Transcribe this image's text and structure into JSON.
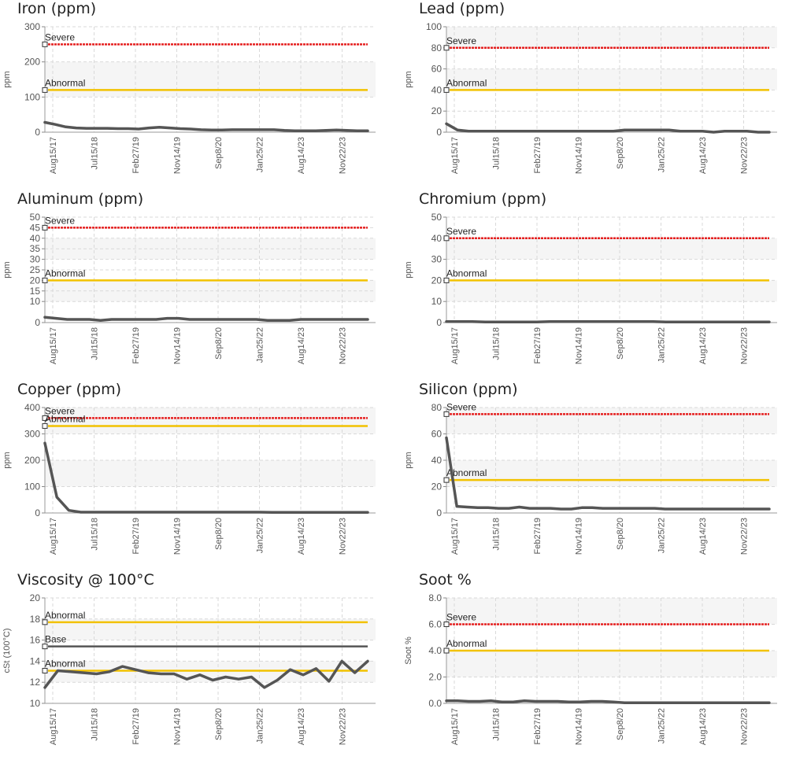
{
  "chart_data": [
    {
      "type": "line",
      "title": "Iron (ppm)",
      "ylabel": "ppm",
      "ylim": [
        0,
        300
      ],
      "yticks": [
        "0",
        "100",
        "200",
        "300"
      ],
      "xticks": [
        "Aug15/17",
        "Jul15/18",
        "Feb27/19",
        "Nov14/19",
        "Sep8/20",
        "Jan25/22",
        "Aug14/23",
        "Nov22/23"
      ],
      "bands": [
        [
          100,
          200
        ]
      ],
      "limits": [
        {
          "label": "Severe",
          "value": 250,
          "color": "#e52020"
        },
        {
          "label": "Abnormal",
          "value": 120,
          "color": "#f2c200"
        }
      ],
      "series": [
        {
          "color": "#555555",
          "values": [
            28,
            22,
            15,
            12,
            11,
            11,
            11,
            10,
            10,
            9,
            12,
            14,
            12,
            10,
            9,
            7,
            6,
            6,
            7,
            7,
            7,
            7,
            7,
            5,
            4,
            4,
            4,
            5,
            6,
            5,
            4,
            4
          ]
        }
      ]
    },
    {
      "type": "line",
      "title": "Lead (ppm)",
      "ylabel": "ppm",
      "ylim": [
        0,
        100
      ],
      "yticks": [
        "0",
        "20",
        "40",
        "60",
        "80",
        "100"
      ],
      "xticks": [
        "Aug15/17",
        "Jul15/18",
        "Feb27/19",
        "Nov14/19",
        "Sep8/20",
        "Jan25/22",
        "Aug14/23",
        "Nov22/23"
      ],
      "bands": [
        [
          40,
          60
        ],
        [
          80,
          100
        ]
      ],
      "limits": [
        {
          "label": "Severe",
          "value": 80,
          "color": "#e52020"
        },
        {
          "label": "Abnormal",
          "value": 40,
          "color": "#f2c200"
        }
      ],
      "series": [
        {
          "color": "#555555",
          "values": [
            8,
            2,
            1,
            1,
            1,
            1,
            1,
            1,
            1,
            1,
            1,
            1,
            1,
            1,
            1,
            1,
            2,
            2,
            2,
            2,
            2,
            1,
            1,
            1,
            0,
            1,
            1,
            1,
            0,
            0
          ]
        }
      ]
    },
    {
      "type": "line",
      "title": "Aluminum (ppm)",
      "ylabel": "ppm",
      "ylim": [
        0,
        50
      ],
      "yticks": [
        "0",
        "10",
        "15",
        "20",
        "25",
        "30",
        "35",
        "40",
        "45",
        "50"
      ],
      "ytick_values": [
        0,
        10,
        15,
        20,
        25,
        30,
        35,
        40,
        45,
        50
      ],
      "xticks": [
        "Aug15/17",
        "Jul15/18",
        "Feb27/19",
        "Nov14/19",
        "Sep8/20",
        "Jan25/22",
        "Aug14/23",
        "Nov22/23"
      ],
      "bands": [
        [
          10,
          20
        ],
        [
          30,
          40
        ]
      ],
      "limits": [
        {
          "label": "Severe",
          "value": 45,
          "color": "#e52020"
        },
        {
          "label": "Abnormal",
          "value": 20,
          "color": "#f2c200"
        }
      ],
      "series": [
        {
          "color": "#555555",
          "values": [
            2.5,
            2,
            1.5,
            1.5,
            1.5,
            1,
            1.5,
            1.5,
            1.5,
            1.5,
            1.5,
            2,
            2,
            1.5,
            1.5,
            1.5,
            1.5,
            1.5,
            1.5,
            1.5,
            1,
            1,
            1,
            1.5,
            1.5,
            1.5,
            1.5,
            1.5,
            1.5,
            1.5
          ]
        }
      ]
    },
    {
      "type": "line",
      "title": "Chromium (ppm)",
      "ylabel": "ppm",
      "ylim": [
        0,
        50
      ],
      "yticks": [
        "0",
        "10",
        "20",
        "30",
        "40",
        "50"
      ],
      "xticks": [
        "Aug15/17",
        "Jul15/18",
        "Feb27/19",
        "Nov14/19",
        "Sep8/20",
        "Jan25/22",
        "Aug14/23",
        "Nov22/23"
      ],
      "bands": [
        [
          10,
          20
        ],
        [
          30,
          40
        ]
      ],
      "limits": [
        {
          "label": "Severe",
          "value": 40,
          "color": "#e52020"
        },
        {
          "label": "Abnormal",
          "value": 20,
          "color": "#f2c200"
        }
      ],
      "series": [
        {
          "color": "#555555",
          "values": [
            0.5,
            0.5,
            0.5,
            0.3,
            0.3,
            0.3,
            0.3,
            0.3,
            0.5,
            0.5,
            0.5,
            0.5,
            0.5,
            0.5,
            0.5,
            0.5,
            0.5,
            0.3,
            0.3,
            0.3,
            0.3,
            0.3,
            0.3,
            0.3,
            0.3,
            0.3
          ]
        }
      ]
    },
    {
      "type": "line",
      "title": "Copper (ppm)",
      "ylabel": "ppm",
      "ylim": [
        0,
        400
      ],
      "yticks": [
        "0",
        "100",
        "200",
        "300",
        "400"
      ],
      "xticks": [
        "Aug15/17",
        "Jul15/18",
        "Feb27/19",
        "Nov14/19",
        "Sep8/20",
        "Jan25/22",
        "Aug14/23",
        "Nov22/23"
      ],
      "bands": [
        [
          100,
          200
        ],
        [
          300,
          400
        ]
      ],
      "limits": [
        {
          "label": "Severe",
          "value": 360,
          "color": "#e52020"
        },
        {
          "label": "Abnormal",
          "value": 330,
          "color": "#f2c200"
        }
      ],
      "series": [
        {
          "color": "#555555",
          "values": [
            265,
            60,
            10,
            3,
            3,
            3,
            3,
            3,
            3,
            3,
            3,
            3,
            3,
            3,
            3,
            3,
            3,
            3,
            3,
            2,
            2,
            2,
            2,
            2,
            2,
            2,
            2,
            2
          ]
        }
      ]
    },
    {
      "type": "line",
      "title": "Silicon (ppm)",
      "ylabel": "ppm",
      "ylim": [
        0,
        80
      ],
      "yticks": [
        "0",
        "20",
        "40",
        "60",
        "80"
      ],
      "xticks": [
        "Aug15/17",
        "Jul15/18",
        "Feb27/19",
        "Nov14/19",
        "Sep8/20",
        "Jan25/22",
        "Aug14/23",
        "Nov22/23"
      ],
      "bands": [
        [
          20,
          40
        ],
        [
          60,
          80
        ]
      ],
      "limits": [
        {
          "label": "Severe",
          "value": 75,
          "color": "#e52020"
        },
        {
          "label": "Abnormal",
          "value": 25,
          "color": "#f2c200"
        }
      ],
      "series": [
        {
          "color": "#555555",
          "values": [
            57,
            5,
            4.5,
            4,
            4,
            3.5,
            3.5,
            4.5,
            3.5,
            3.5,
            3.5,
            3,
            3,
            4,
            4,
            3.5,
            3.5,
            3.5,
            3.5,
            3.5,
            3.5,
            3,
            3,
            3,
            3,
            3,
            3,
            3,
            3,
            3,
            3,
            3
          ]
        }
      ]
    },
    {
      "type": "line",
      "title": "Viscosity @ 100°C",
      "ylabel": "cSt (100°C)",
      "ylim": [
        10,
        20
      ],
      "yticks": [
        "10",
        "12",
        "14",
        "16",
        "18",
        "20"
      ],
      "xticks": [
        "Aug15/17",
        "Jul15/18",
        "Feb27/19",
        "Nov14/19",
        "Sep8/20",
        "Jan25/22",
        "Aug14/23",
        "Nov22/23"
      ],
      "bands": [
        [
          12,
          14
        ],
        [
          16,
          18
        ]
      ],
      "limits": [
        {
          "label": "Abnormal",
          "value": 17.7,
          "color": "#f2c200"
        },
        {
          "label": "Base",
          "value": 15.4,
          "color": "#555555"
        },
        {
          "label": "Abnormal",
          "value": 13.1,
          "color": "#f2c200"
        }
      ],
      "series": [
        {
          "color": "#555555",
          "values": [
            11.5,
            13.1,
            13.0,
            12.9,
            12.8,
            13.0,
            13.5,
            13.2,
            12.9,
            12.8,
            12.8,
            12.3,
            12.7,
            12.2,
            12.5,
            12.3,
            12.5,
            11.5,
            12.2,
            13.2,
            12.7,
            13.3,
            12.1,
            14.0,
            12.9,
            14.0
          ]
        }
      ]
    },
    {
      "type": "line",
      "title": "Soot %",
      "ylabel": "Soot %",
      "ylim": [
        0,
        8
      ],
      "yticks": [
        "0.0",
        "2.0",
        "4.0",
        "6.0",
        "8.0"
      ],
      "xticks": [
        "Aug15/17",
        "Jul15/18",
        "Feb27/19",
        "Nov14/19",
        "Sep8/20",
        "Jan25/22",
        "Aug14/23",
        "Nov22/23"
      ],
      "bands": [
        [
          2,
          4
        ],
        [
          6,
          8
        ]
      ],
      "limits": [
        {
          "label": "Severe",
          "value": 6,
          "color": "#e52020"
        },
        {
          "label": "Abnormal",
          "value": 4,
          "color": "#f2c200"
        }
      ],
      "series": [
        {
          "color": "#555555",
          "values": [
            0.2,
            0.2,
            0.15,
            0.15,
            0.2,
            0.1,
            0.1,
            0.2,
            0.15,
            0.15,
            0.15,
            0.1,
            0.1,
            0.15,
            0.15,
            0.1,
            0.05,
            0.05,
            0.05,
            0.05,
            0.05,
            0.05,
            0.05,
            0.05,
            0.05,
            0.05,
            0.05,
            0.05,
            0.05,
            0.05
          ]
        }
      ]
    }
  ]
}
